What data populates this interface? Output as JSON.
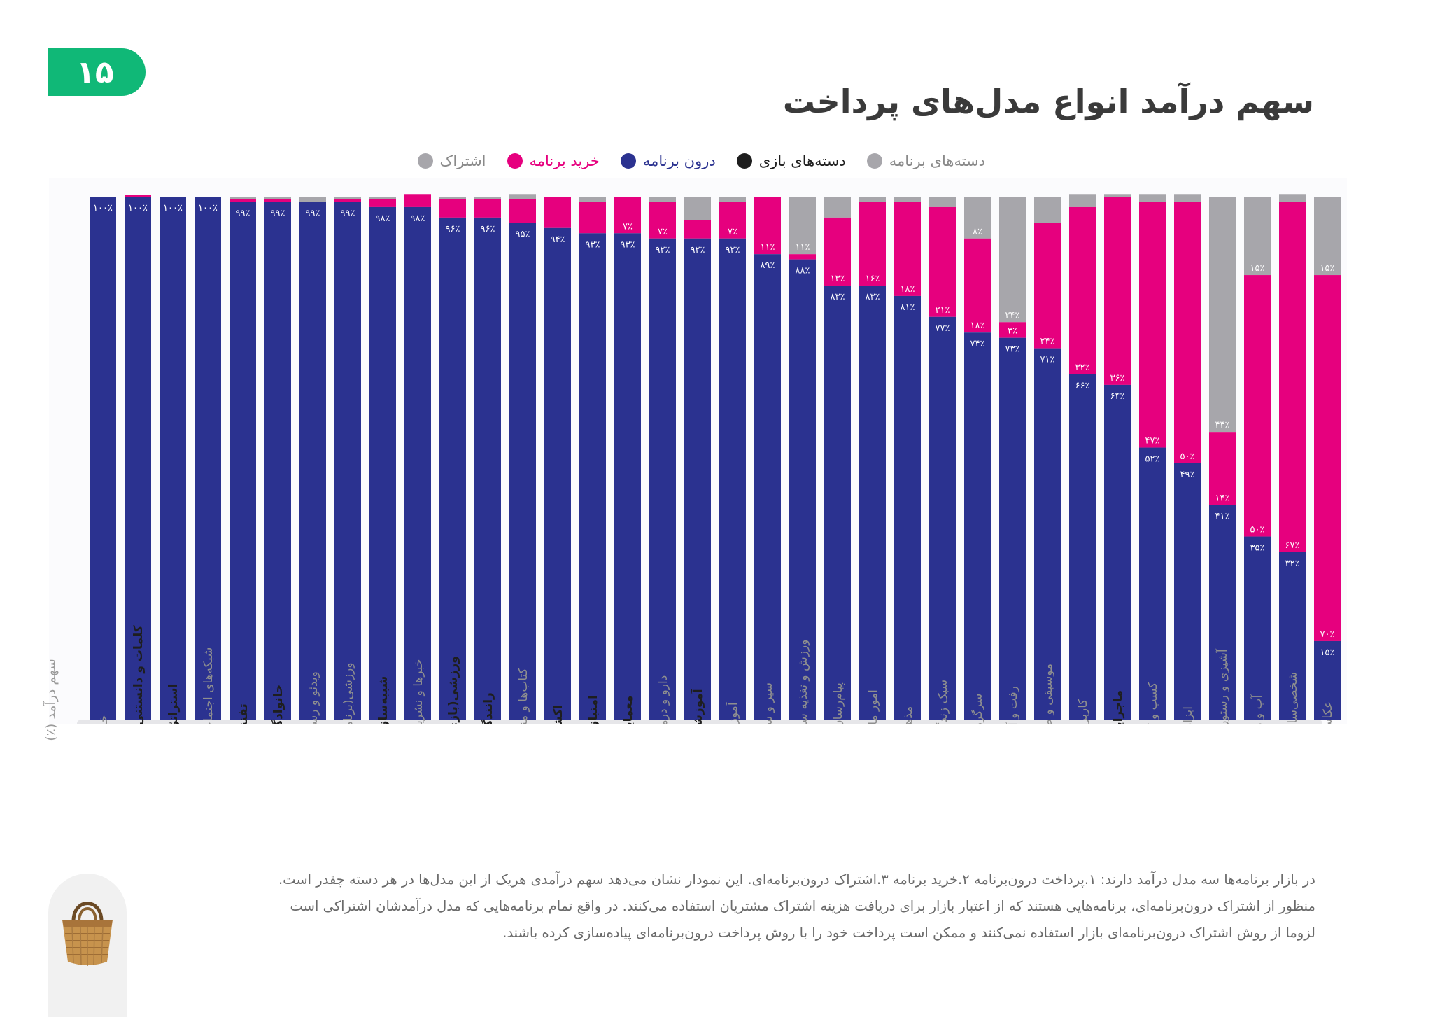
{
  "page_number": "۱۵",
  "title": "سهم درآمد انواع مدل‌های پرداخت",
  "legend": [
    {
      "label": "اشتراک",
      "color": "#a7a6ab",
      "label_color": "#8a8a8a"
    },
    {
      "label": "خرید برنامه",
      "color": "#e6007e",
      "label_color": "#e6007e"
    },
    {
      "label": "درون برنامه",
      "color": "#2b3290",
      "label_color": "#2b3290"
    },
    {
      "label": "دسته‌های بازی",
      "color": "#1e1e1e",
      "label_color": "#1e1e1e"
    },
    {
      "label": "دسته‌های برنامه",
      "color": "#a7a6ab",
      "label_color": "#8a8a8a"
    }
  ],
  "chart_data": {
    "type": "bar",
    "stacked": true,
    "ylabel": "سهم درآمد (٪)",
    "ylim": [
      0,
      100
    ],
    "categories": [
      {
        "label": "خرید",
        "group": "app"
      },
      {
        "label": "کلمات و دانستنی‌ها",
        "group": "game"
      },
      {
        "label": "استراتژی",
        "group": "game"
      },
      {
        "label": "شبکه‌های اجتماعی",
        "group": "app"
      },
      {
        "label": "تفننی",
        "group": "game"
      },
      {
        "label": "خانوادگی",
        "group": "game"
      },
      {
        "label": "ویدئو و رسانه",
        "group": "app"
      },
      {
        "label": "ورزشی(برنامه)",
        "group": "app"
      },
      {
        "label": "شبیه‌سازی",
        "group": "game"
      },
      {
        "label": "خبرها و نشریات",
        "group": "app"
      },
      {
        "label": "ورزشی(بازی)",
        "group": "game"
      },
      {
        "label": "رانندگی",
        "group": "game"
      },
      {
        "label": "کتاب‌ها و منابع",
        "group": "app"
      },
      {
        "label": "اکشن",
        "group": "game"
      },
      {
        "label": "امتیازی",
        "group": "game"
      },
      {
        "label": "معمایی",
        "group": "game"
      },
      {
        "label": "دارو و درمان",
        "group": "app"
      },
      {
        "label": "آموزشی",
        "group": "game"
      },
      {
        "label": "آموزش",
        "group": "app"
      },
      {
        "label": "سیر و سفر",
        "group": "app"
      },
      {
        "label": "ورزش و تغذیه سالم",
        "group": "app"
      },
      {
        "label": "پیام‌رسان‌ها",
        "group": "app"
      },
      {
        "label": "امور مالی",
        "group": "app"
      },
      {
        "label": "مذهبی",
        "group": "app"
      },
      {
        "label": "سبک زندگی",
        "group": "app"
      },
      {
        "label": "سرگرمی",
        "group": "app"
      },
      {
        "label": "رفت و آمد",
        "group": "app"
      },
      {
        "label": "موسیقی و صدا",
        "group": "app"
      },
      {
        "label": "کاربردی",
        "group": "app"
      },
      {
        "label": "ماجرایی",
        "group": "game"
      },
      {
        "label": "کسب و کار",
        "group": "app"
      },
      {
        "label": "ابزارها",
        "group": "app"
      },
      {
        "label": "آشپزی و رستوران",
        "group": "app"
      },
      {
        "label": "آب و هوا",
        "group": "app"
      },
      {
        "label": "شخصی‌سازی",
        "group": "app"
      },
      {
        "label": "عکاسی",
        "group": "app"
      }
    ],
    "series": [
      {
        "name": "درون برنامه",
        "color": "#2b3290",
        "values": [
          100,
          100,
          100,
          100,
          99,
          99,
          99,
          99,
          98,
          98,
          96,
          96,
          95,
          94,
          93,
          93,
          92,
          92,
          92,
          89,
          88,
          83,
          83,
          81,
          77,
          74,
          73,
          71,
          66,
          64,
          52,
          49,
          41,
          35,
          32,
          15
        ],
        "labels": [
          "۱۰۰٪",
          "۱۰۰٪",
          "۱۰۰٪",
          "۱۰۰٪",
          "۹۹٪",
          "۹۹٪",
          "۹۹٪",
          "۹۹٪",
          "۹۸٪",
          "۹۸٪",
          "۹۶٪",
          "۹۶٪",
          "۹۵٪",
          "۹۴٪",
          "۹۳٪",
          "۹۳٪",
          "۹۲٪",
          "۹۲٪",
          "۹۲٪",
          "۸۹٪",
          "۸۸٪",
          "۸۳٪",
          "۸۳٪",
          "۸۱٪",
          "۷۷٪",
          "۷۴٪",
          "۷۳٪",
          "۷۱٪",
          "۶۶٪",
          "۶۴٪",
          "۵۲٪",
          "۴۹٪",
          "۴۱٪",
          "۳۵٪",
          "۳۲٪",
          "۱۵٪"
        ]
      },
      {
        "name": "خرید برنامه",
        "color": "#e6007e",
        "values": [
          0,
          0.4,
          0,
          0,
          0.5,
          0.5,
          0,
          0.5,
          1.6,
          2.5,
          3.5,
          3.5,
          4.5,
          6,
          6,
          7,
          7,
          3.5,
          7,
          11,
          1,
          13,
          16,
          18,
          21,
          18,
          3,
          24,
          32,
          36,
          47,
          50,
          14,
          50,
          67,
          70
        ],
        "labels": [
          "",
          "",
          "",
          "",
          "",
          "",
          "",
          "",
          "",
          "",
          "",
          "",
          "",
          "",
          "",
          "۷٪",
          "۷٪",
          "",
          "۷٪",
          "۱۱٪",
          "",
          "۱۳٪",
          "۱۶٪",
          "۱۸٪",
          "۲۱٪",
          "۱۸٪",
          "۳٪",
          "۲۴٪",
          "۳۲٪",
          "۳۶٪",
          "۴۷٪",
          "۵۰٪",
          "۱۴٪",
          "۵۰٪",
          "۶۷٪",
          "۷۰٪"
        ]
      },
      {
        "name": "اشتراک",
        "color": "#a7a6ab",
        "values": [
          0,
          0,
          0,
          0,
          0.5,
          0.5,
          1,
          0.5,
          0.4,
          0,
          0,
          0,
          1,
          0,
          0.5,
          0,
          0.4,
          4.5,
          1,
          0,
          11,
          4,
          1,
          0.4,
          2,
          8,
          24,
          5,
          2.5,
          0.5,
          1.5,
          1.5,
          44,
          15,
          1.5,
          15
        ],
        "labels": [
          "",
          "",
          "",
          "",
          "",
          "",
          "",
          "",
          "",
          "",
          "",
          "",
          "",
          "",
          "",
          "",
          "",
          "",
          "",
          "",
          "۱۱٪",
          "",
          "",
          "",
          "",
          "۸٪",
          "۲۴٪",
          "",
          "",
          "",
          "",
          "",
          "۴۴٪",
          "۱۵٪",
          "",
          "۱۵٪"
        ]
      }
    ]
  },
  "footnote": {
    "line1": "در بازار برنامه‌ها سه مدل درآمد دارند: ۱.پرداخت درون‌برنامه ۲.خرید برنامه ۳.اشتراک درون‌برنامه‌ای. این نمودار نشان می‌دهد سهم درآمدی هریک از این مدل‌ها در هر دسته چقدر است.",
    "line2": "منظور از اشتراک درون‌برنامه‌ای، برنامه‌هایی هستند که از اعتبار بازار برای دریافت هزینه اشتراک مشتریان استفاده می‌کنند. در واقع تمام برنامه‌هایی که مدل درآمدشان اشتراکی است",
    "line3": "لزوما از روش اشتراک درون‌برنامه‌ای بازار استفاده نمی‌کنند و ممکن است پرداخت خود را با روش پرداخت درون‌برنامه‌ای پیاده‌سازی کرده باشند."
  }
}
